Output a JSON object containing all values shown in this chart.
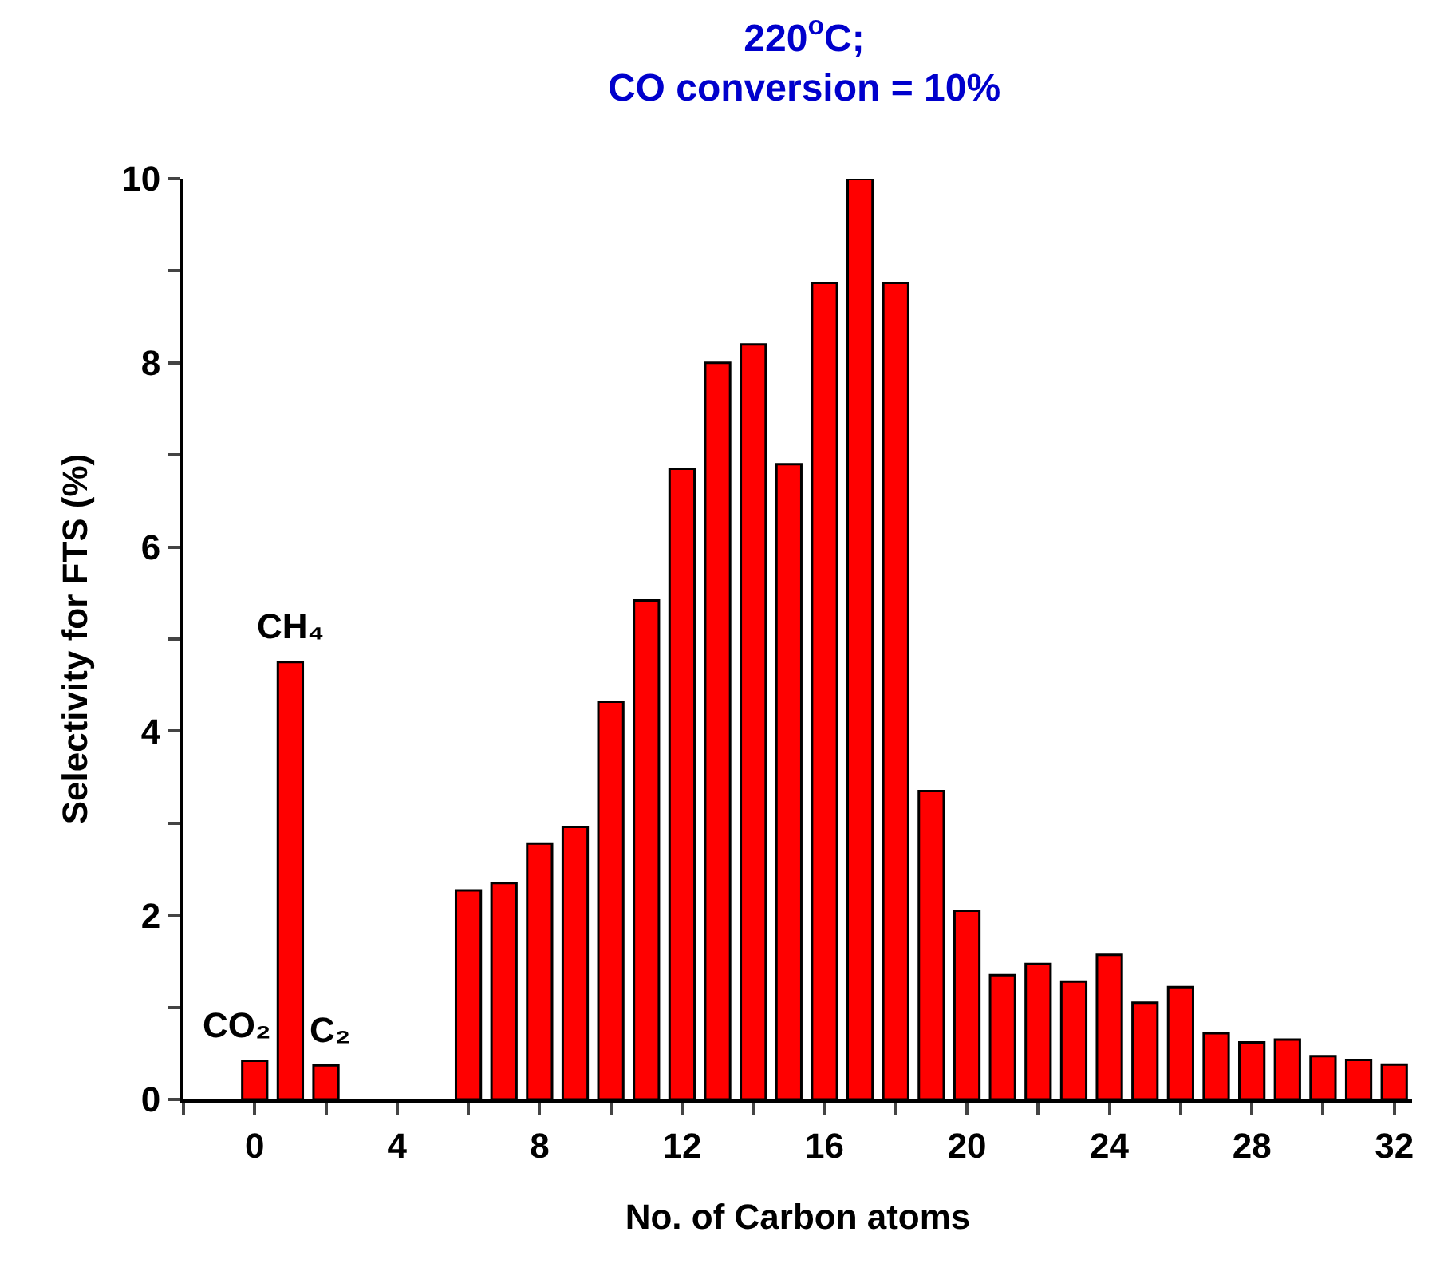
{
  "chart_data": {
    "type": "bar",
    "title": "220$^{o}$C;\nCO conversion = 10%",
    "xlabel": "No. of Carbon atoms",
    "ylabel": "Selectivity for FTS (%)",
    "x": [
      0,
      1,
      2,
      6,
      7,
      8,
      9,
      10,
      11,
      12,
      13,
      14,
      15,
      16,
      17,
      18,
      19,
      20,
      21,
      22,
      23,
      24,
      25,
      26,
      27,
      28,
      29,
      30,
      31,
      32
    ],
    "values": [
      0.42,
      4.75,
      0.37,
      2.27,
      2.35,
      2.78,
      2.96,
      4.32,
      5.42,
      6.85,
      8.0,
      8.2,
      6.9,
      8.87,
      10.0,
      8.87,
      3.35,
      2.05,
      1.35,
      1.47,
      1.28,
      1.57,
      1.05,
      1.22,
      0.72,
      0.62,
      0.65,
      0.47,
      0.43,
      0.38
    ],
    "color": "#ff0000",
    "xlim": [
      -2,
      32.5
    ],
    "ylim": [
      0,
      10
    ],
    "xticks": [
      {
        "value": -2,
        "label": null
      },
      0,
      {
        "value": 2,
        "label": null
      },
      4,
      {
        "value": 6,
        "label": null
      },
      8,
      {
        "value": 10,
        "label": null
      },
      12,
      {
        "value": 14,
        "label": null
      },
      16,
      {
        "value": 18,
        "label": null
      },
      20,
      {
        "value": 22,
        "label": null
      },
      24,
      {
        "value": 26,
        "label": null
      },
      28,
      {
        "value": 30,
        "label": null
      },
      32
    ],
    "yticks": [
      0,
      {
        "value": 1,
        "label": null
      },
      2,
      {
        "value": 3,
        "label": null
      },
      4,
      {
        "value": 5,
        "label": null
      },
      6,
      {
        "value": 7,
        "label": null
      },
      8,
      {
        "value": 9,
        "label": null
      },
      10
    ],
    "annotations": [
      {
        "text": "CO₂",
        "x": 0,
        "y": 0.42
      },
      {
        "text": "CH₄",
        "x": 1,
        "y": 4.75
      },
      {
        "text": "C₂",
        "x": 2,
        "y": 0.37
      }
    ]
  }
}
